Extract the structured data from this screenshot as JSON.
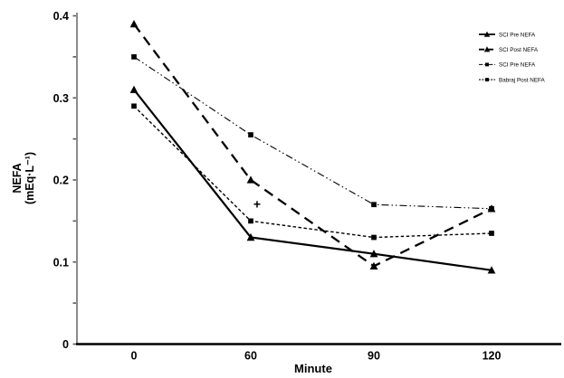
{
  "colors": {
    "background": "#ffffff",
    "series_color": "#000000",
    "y_axis_line": "#8c8c8c",
    "y_axis_tick": "#5a5a5a",
    "x_axis_line": "#000000",
    "text": "#000000"
  },
  "chart_data": {
    "type": "line",
    "title": "",
    "xlabel": "Minute",
    "ylabel": "NEFA (mEq·L⁻¹)",
    "ylabel_lines": [
      "NEFA",
      "(mEq·L⁻¹)"
    ],
    "x_categories": [
      "0",
      "60",
      "90",
      "120"
    ],
    "y_tick_values": [
      0,
      0.1,
      0.2,
      0.3,
      0.4
    ],
    "y_tick_labels": [
      "0",
      "0.1",
      "0.2",
      "0.3",
      "0.4"
    ],
    "y_minor_step": 0.05,
    "ylim": [
      0,
      0.4
    ],
    "grid": false,
    "legend_position": "upper-right",
    "series": [
      {
        "name": "SCI Pre NEFA",
        "marker": "triangle",
        "line": "solid",
        "values": [
          0.31,
          0.13,
          0.11,
          0.09
        ]
      },
      {
        "name": "SCI Post NEFA",
        "marker": "triangle",
        "line": "long-dash",
        "values": [
          0.39,
          0.2,
          0.095,
          0.165
        ]
      },
      {
        "name": "SCI Pre NEFA",
        "marker": "square",
        "line": "dash-dot",
        "values": [
          0.35,
          0.255,
          0.17,
          0.165
        ]
      },
      {
        "name": "Babraj Post NEFA",
        "marker": "square",
        "line": "short-dash",
        "values": [
          0.29,
          0.15,
          0.13,
          0.135
        ]
      }
    ],
    "annotations": [
      {
        "text": "+",
        "x_category": "60",
        "x_category_index": 1,
        "y": 0.17
      }
    ]
  }
}
